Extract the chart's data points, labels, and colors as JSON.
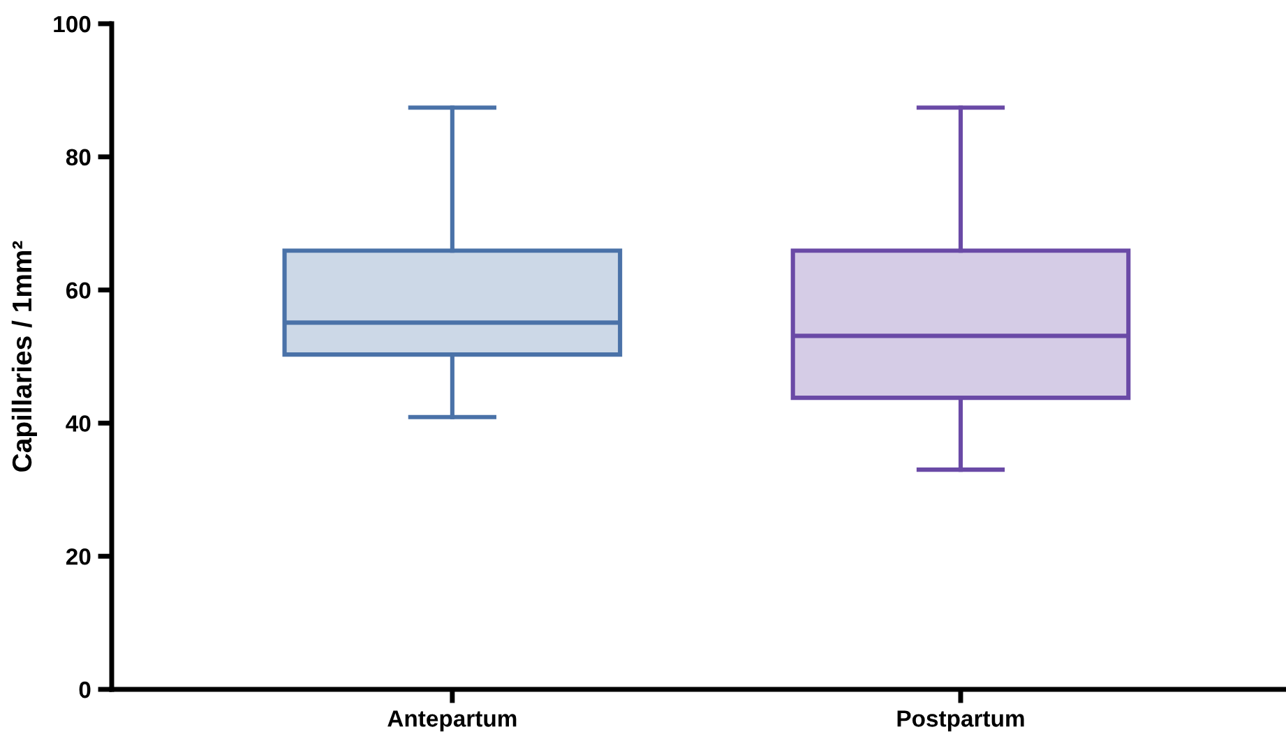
{
  "chart_data": {
    "type": "box",
    "ylabel": "Capillaries / 1mm²",
    "categories": [
      "Antepartum",
      "Postpartum"
    ],
    "series": [
      {
        "colors": [
          "#4a72a8",
          "#6a4aa6"
        ],
        "boxes": [
          {
            "low": 40.9,
            "q1": 50.3,
            "median": 55.1,
            "q3": 65.9,
            "high": 87.4
          },
          {
            "low": 33.0,
            "q1": 43.8,
            "median": 53.1,
            "q3": 65.9,
            "high": 87.4
          }
        ]
      }
    ],
    "ylim": [
      0,
      100
    ],
    "yticks": [
      0,
      20,
      40,
      60,
      80,
      100
    ],
    "grid": false,
    "legend": false
  }
}
